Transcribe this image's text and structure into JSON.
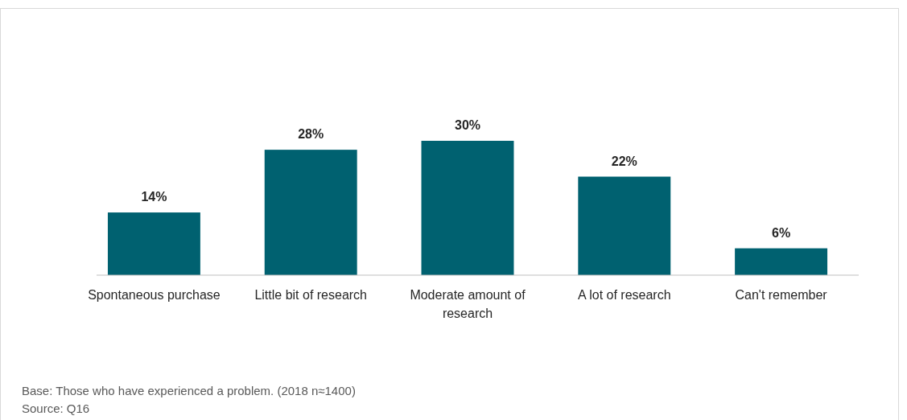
{
  "chart_data": {
    "type": "bar",
    "categories": [
      "Spontaneous purchase",
      "Little bit of research",
      "Moderate amount of research",
      "A lot of research",
      "Can't remember"
    ],
    "values": [
      14,
      28,
      30,
      22,
      6
    ],
    "value_labels": [
      "14%",
      "28%",
      "30%",
      "22%",
      "6%"
    ],
    "color": "#006170",
    "annotations": [
      "Base: Those who have experienced a problem. (2018 n≈1400)",
      "Source: Q16"
    ]
  }
}
